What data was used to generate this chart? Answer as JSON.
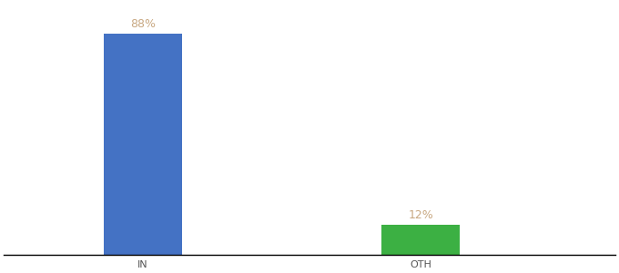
{
  "categories": [
    "IN",
    "OTH"
  ],
  "values": [
    88,
    12
  ],
  "bar_colors": [
    "#4472c4",
    "#3cb043"
  ],
  "label_texts": [
    "88%",
    "12%"
  ],
  "ylabel": "",
  "ylim": [
    0,
    100
  ],
  "background_color": "#ffffff",
  "label_color": "#c8a882",
  "axis_line_color": "#000000",
  "bar_width": 0.28,
  "label_fontsize": 9,
  "tick_fontsize": 8,
  "x_positions": [
    1,
    2
  ],
  "xlim": [
    0.5,
    2.7
  ]
}
